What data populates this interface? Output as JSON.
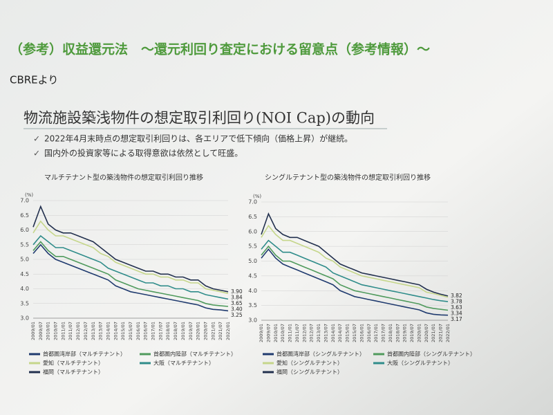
{
  "slide_title": "（参考）収益還元法　～還元利回り査定における留意点（参考情報）～",
  "source": "CBREより",
  "heading": "物流施設築浅物件の想定取引利回り(NOI Cap)の動向",
  "bullets": [
    "2022年4月末時点の想定取引利回りは、各エリアで低下傾向（価格上昇）が継続。",
    "国内外の投資家等による取得意欲は依然として旺盛。"
  ],
  "chart_data": [
    {
      "type": "line",
      "title": "マルチテナント型の築浅物件の想定取引利回り推移",
      "y_unit": "(%)",
      "grid": true,
      "categories": [
        "2009/01",
        "2009/07",
        "2010/01",
        "2010/07",
        "2011/01",
        "2011/07",
        "2012/01",
        "2012/07",
        "2013/01",
        "2013/07",
        "2014/01",
        "2014/07",
        "2015/01",
        "2015/07",
        "2016/01",
        "2016/07",
        "2017/01",
        "2017/07",
        "2018/01",
        "2018/07",
        "2019/01",
        "2019/07",
        "2020/01",
        "2020/07",
        "2021/01",
        "2021/07",
        "2022/01"
      ],
      "ylim": [
        3,
        7
      ],
      "yticks": [
        {
          "value": 3,
          "label": "3.0"
        },
        {
          "value": 3.5,
          "label": "3.5"
        },
        {
          "value": 4,
          "label": "4.0"
        },
        {
          "value": 4.5,
          "label": "4.5"
        },
        {
          "value": 5,
          "label": "5.0"
        },
        {
          "value": 5.5,
          "label": "5.5"
        },
        {
          "value": 6,
          "label": "6.0"
        },
        {
          "value": 6.5,
          "label": "6.5"
        },
        {
          "value": 7,
          "label": "7.0"
        }
      ],
      "series": [
        {
          "name": "首都圏湾岸部（マルチテナント）",
          "color": "#1f3a6e",
          "values": [
            5.2,
            5.5,
            5.2,
            5.0,
            4.9,
            4.8,
            4.7,
            4.6,
            4.5,
            4.4,
            4.3,
            4.1,
            4.0,
            3.9,
            3.85,
            3.8,
            3.75,
            3.7,
            3.65,
            3.6,
            3.55,
            3.5,
            3.45,
            3.35,
            3.3,
            3.28,
            3.25
          ],
          "value_labels": [
            null,
            null,
            null,
            null,
            null,
            null,
            null,
            null,
            null,
            null,
            null,
            null,
            null,
            null,
            null,
            null,
            null,
            null,
            null,
            null,
            null,
            null,
            null,
            null,
            null,
            null,
            "3.25"
          ]
        },
        {
          "name": "首都圏内陸部（マルチテナント）",
          "color": "#4f9a5c",
          "values": [
            5.3,
            5.6,
            5.3,
            5.1,
            5.1,
            5.0,
            4.9,
            4.8,
            4.7,
            4.6,
            4.5,
            4.3,
            4.2,
            4.1,
            4.0,
            3.95,
            3.9,
            3.85,
            3.8,
            3.75,
            3.7,
            3.65,
            3.6,
            3.5,
            3.45,
            3.42,
            3.4
          ],
          "value_labels": [
            null,
            null,
            null,
            null,
            null,
            null,
            null,
            null,
            null,
            null,
            null,
            null,
            null,
            null,
            null,
            null,
            null,
            null,
            null,
            null,
            null,
            null,
            null,
            null,
            null,
            null,
            "3.40"
          ]
        },
        {
          "name": "愛知（マルチテナント）",
          "color": "#c5d68a",
          "values": [
            5.9,
            6.3,
            6.0,
            5.8,
            5.8,
            5.7,
            5.6,
            5.5,
            5.4,
            5.2,
            5.1,
            4.9,
            4.8,
            4.7,
            4.6,
            4.5,
            4.5,
            4.4,
            4.4,
            4.3,
            4.3,
            4.2,
            4.2,
            4.0,
            3.95,
            3.9,
            3.84
          ],
          "value_labels": [
            null,
            null,
            null,
            null,
            null,
            null,
            null,
            null,
            null,
            null,
            null,
            null,
            null,
            null,
            null,
            null,
            null,
            null,
            null,
            null,
            null,
            null,
            null,
            null,
            null,
            null,
            "3.84"
          ]
        },
        {
          "name": "大阪（マルチテナント）",
          "color": "#2f8c8a",
          "values": [
            5.5,
            5.8,
            5.6,
            5.4,
            5.4,
            5.3,
            5.2,
            5.1,
            5.0,
            4.9,
            4.7,
            4.6,
            4.5,
            4.4,
            4.3,
            4.2,
            4.2,
            4.1,
            4.1,
            4.0,
            4.0,
            3.9,
            3.9,
            3.8,
            3.75,
            3.7,
            3.65
          ],
          "value_labels": [
            null,
            null,
            null,
            null,
            null,
            null,
            null,
            null,
            null,
            null,
            null,
            null,
            null,
            null,
            null,
            null,
            null,
            null,
            null,
            null,
            null,
            null,
            null,
            null,
            null,
            null,
            "3.65"
          ]
        },
        {
          "name": "福岡（マルチテナント）",
          "color": "#22304e",
          "values": [
            6.1,
            6.8,
            6.2,
            6.0,
            5.9,
            5.9,
            5.8,
            5.7,
            5.6,
            5.4,
            5.2,
            5.0,
            4.9,
            4.8,
            4.7,
            4.6,
            4.6,
            4.5,
            4.5,
            4.4,
            4.4,
            4.3,
            4.3,
            4.1,
            4.0,
            3.95,
            3.9
          ],
          "value_labels": [
            null,
            null,
            null,
            null,
            null,
            null,
            null,
            null,
            null,
            null,
            null,
            null,
            null,
            null,
            null,
            null,
            null,
            null,
            null,
            null,
            null,
            null,
            null,
            null,
            null,
            null,
            "3.90"
          ]
        }
      ]
    },
    {
      "type": "line",
      "title": "シングルテナント型の築浅物件の想定取引利回り推移",
      "y_unit": "(%)",
      "grid": true,
      "categories": [
        "2009/01",
        "2009/07",
        "2010/01",
        "2010/07",
        "2011/01",
        "2011/07",
        "2012/01",
        "2012/07",
        "2013/01",
        "2013/07",
        "2014/01",
        "2014/07",
        "2015/01",
        "2015/07",
        "2016/01",
        "2016/07",
        "2017/01",
        "2017/07",
        "2018/01",
        "2018/07",
        "2019/01",
        "2019/07",
        "2020/01",
        "2020/07",
        "2021/01",
        "2021/07",
        "2022/01"
      ],
      "ylim": [
        3,
        7
      ],
      "yticks": [
        {
          "value": 3,
          "label": "3.0"
        },
        {
          "value": 3.5,
          "label": "3.5"
        },
        {
          "value": 4,
          "label": "4.0"
        },
        {
          "value": 4.5,
          "label": "4.5"
        },
        {
          "value": 5,
          "label": "5.0"
        },
        {
          "value": 5.5,
          "label": "5.5"
        },
        {
          "value": 6,
          "label": "6.0"
        },
        {
          "value": 6.5,
          "label": "6.5"
        },
        {
          "value": 7,
          "label": "7.0"
        }
      ],
      "series": [
        {
          "name": "首都圏湾岸部（シングルテナント）",
          "color": "#1f3a6e",
          "values": [
            5.1,
            5.4,
            5.1,
            4.9,
            4.8,
            4.7,
            4.6,
            4.5,
            4.4,
            4.3,
            4.2,
            4.0,
            3.9,
            3.8,
            3.75,
            3.7,
            3.65,
            3.6,
            3.55,
            3.5,
            3.45,
            3.4,
            3.35,
            3.25,
            3.2,
            3.18,
            3.17
          ],
          "value_labels": [
            null,
            null,
            null,
            null,
            null,
            null,
            null,
            null,
            null,
            null,
            null,
            null,
            null,
            null,
            null,
            null,
            null,
            null,
            null,
            null,
            null,
            null,
            null,
            null,
            null,
            null,
            "3.17"
          ]
        },
        {
          "name": "首都圏内陸部（シングルテナント）",
          "color": "#4f9a5c",
          "values": [
            5.2,
            5.5,
            5.2,
            5.0,
            5.0,
            4.9,
            4.8,
            4.7,
            4.6,
            4.5,
            4.4,
            4.2,
            4.1,
            4.0,
            3.95,
            3.9,
            3.85,
            3.8,
            3.75,
            3.7,
            3.65,
            3.6,
            3.55,
            3.45,
            3.4,
            3.37,
            3.34
          ],
          "value_labels": [
            null,
            null,
            null,
            null,
            null,
            null,
            null,
            null,
            null,
            null,
            null,
            null,
            null,
            null,
            null,
            null,
            null,
            null,
            null,
            null,
            null,
            null,
            null,
            null,
            null,
            null,
            "3.34"
          ]
        },
        {
          "name": "愛知（シングルテナント）",
          "color": "#c5d68a",
          "values": [
            5.8,
            6.2,
            5.9,
            5.7,
            5.7,
            5.6,
            5.5,
            5.4,
            5.3,
            5.1,
            5.0,
            4.8,
            4.7,
            4.6,
            4.5,
            4.45,
            4.4,
            4.35,
            4.3,
            4.25,
            4.2,
            4.15,
            4.1,
            3.95,
            3.9,
            3.84,
            3.78
          ],
          "value_labels": [
            null,
            null,
            null,
            null,
            null,
            null,
            null,
            null,
            null,
            null,
            null,
            null,
            null,
            null,
            null,
            null,
            null,
            null,
            null,
            null,
            null,
            null,
            null,
            null,
            null,
            null,
            "3.78"
          ]
        },
        {
          "name": "大阪（シングルテナント）",
          "color": "#2f8c8a",
          "values": [
            5.4,
            5.7,
            5.5,
            5.3,
            5.3,
            5.2,
            5.1,
            5.0,
            4.9,
            4.8,
            4.6,
            4.5,
            4.4,
            4.3,
            4.2,
            4.15,
            4.1,
            4.05,
            4.0,
            3.95,
            3.9,
            3.85,
            3.8,
            3.75,
            3.7,
            3.66,
            3.63
          ],
          "value_labels": [
            null,
            null,
            null,
            null,
            null,
            null,
            null,
            null,
            null,
            null,
            null,
            null,
            null,
            null,
            null,
            null,
            null,
            null,
            null,
            null,
            null,
            null,
            null,
            null,
            null,
            null,
            "3.63"
          ]
        },
        {
          "name": "福岡（シングルテナント）",
          "color": "#22304e",
          "values": [
            5.9,
            6.6,
            6.1,
            5.9,
            5.8,
            5.8,
            5.7,
            5.6,
            5.5,
            5.3,
            5.1,
            4.9,
            4.8,
            4.7,
            4.6,
            4.55,
            4.5,
            4.45,
            4.4,
            4.35,
            4.3,
            4.25,
            4.2,
            4.05,
            3.95,
            3.88,
            3.82
          ],
          "value_labels": [
            null,
            null,
            null,
            null,
            null,
            null,
            null,
            null,
            null,
            null,
            null,
            null,
            null,
            null,
            null,
            null,
            null,
            null,
            null,
            null,
            null,
            null,
            null,
            null,
            null,
            null,
            "3.82"
          ]
        }
      ]
    }
  ]
}
